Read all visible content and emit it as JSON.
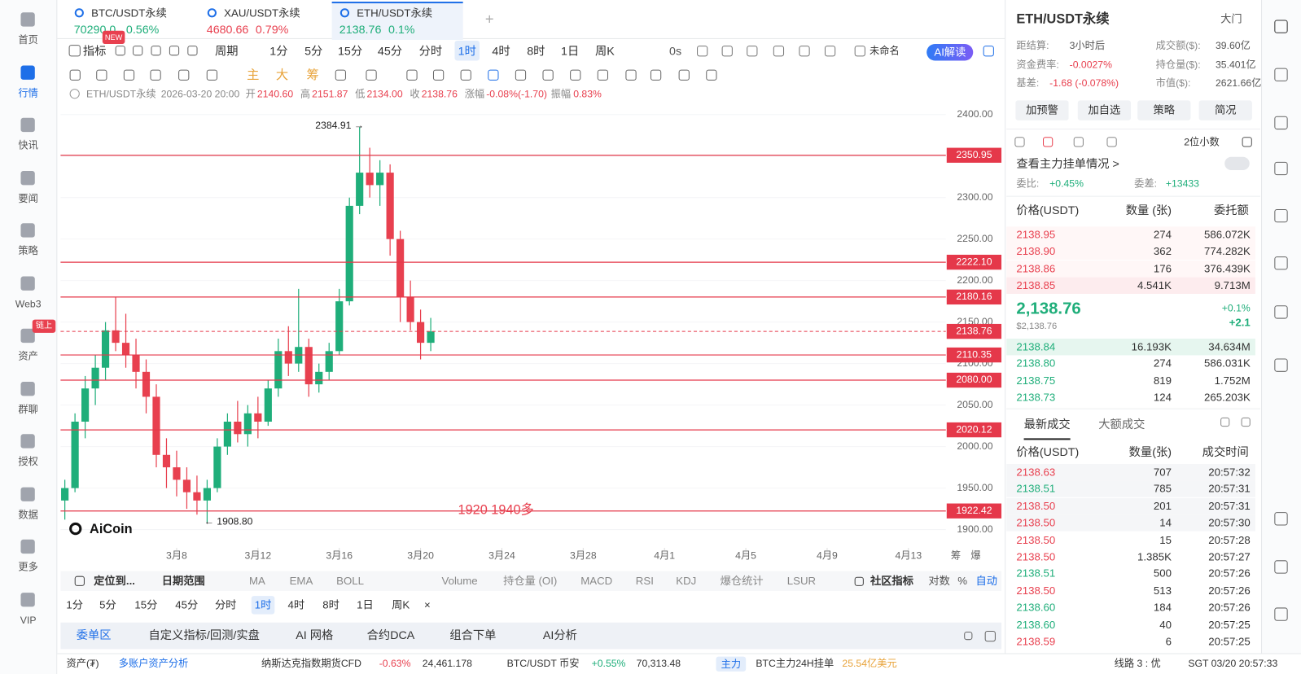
{
  "sidebar": {
    "items": [
      "首页",
      "行情",
      "快讯",
      "要闻",
      "策略",
      "Web3",
      "资产",
      "群聊",
      "授权",
      "数据",
      "更多",
      "VIP"
    ],
    "active_index": 1,
    "badge": "链上"
  },
  "tabs": {
    "items": [
      {
        "name": "BTC/USDT永续",
        "price": "70290.0",
        "change": "0.56%",
        "trend": "up"
      },
      {
        "name": "XAU/USDT永续",
        "price": "4680.66",
        "change": "0.79%",
        "trend": "down"
      },
      {
        "name": "ETH/USDT永续",
        "price": "2138.76",
        "change": "0.1%",
        "trend": "up"
      }
    ],
    "active_index": 2,
    "add": "+"
  },
  "toolbar": {
    "indicator": "指标",
    "new_badge": "NEW",
    "period": "周期",
    "periods": [
      "1分",
      "5分",
      "15分",
      "45分",
      "分时",
      "1时",
      "4时",
      "8时",
      "1日",
      "周K"
    ],
    "active_period_index": 5,
    "countdown": "0s",
    "layout_name": "未命名",
    "ai": "AI解读"
  },
  "draw_toolbar": [
    "主",
    "大",
    "筹"
  ],
  "info_bar": {
    "symbol": "ETH/USDT永续",
    "time": "2026-03-20 20:00",
    "open_label": "开",
    "open": "2140.60",
    "high_label": "高",
    "high": "2151.87",
    "low_label": "低",
    "low": "2134.00",
    "close_label": "收",
    "close": "2138.76",
    "change_label": "涨幅",
    "change": "-0.08%(-1.70)",
    "amplitude_label": "振幅",
    "amplitude": "0.83%"
  },
  "chart_data": {
    "type": "candlestick",
    "logo": "AiCoin",
    "high_marker": "2384.91 →",
    "low_marker": "← 1908.80",
    "note": "1920  1940多",
    "side_labels": [
      "筹",
      "爆"
    ],
    "colors": {
      "up": "#1fae7a",
      "down": "#e8404f",
      "level": "#e5384a"
    },
    "xlim": [
      2.29,
      45.84
    ],
    "ylim": [
      1878,
      2433
    ],
    "xticks": [
      {
        "value": 8,
        "label": "3月8"
      },
      {
        "value": 12,
        "label": "3月12"
      },
      {
        "value": 16,
        "label": "3月16"
      },
      {
        "value": 20,
        "label": "3月20"
      },
      {
        "value": 24,
        "label": "3月24"
      },
      {
        "value": 28,
        "label": "3月28"
      },
      {
        "value": 32,
        "label": "4月1"
      },
      {
        "value": 36,
        "label": "4月5"
      },
      {
        "value": 40,
        "label": "4月9"
      },
      {
        "value": 44,
        "label": "4月13"
      }
    ],
    "yticks": [
      {
        "value": 1900,
        "label": "1900.00"
      },
      {
        "value": 1950,
        "label": "1950.00"
      },
      {
        "value": 2000,
        "label": "2000.00"
      },
      {
        "value": 2050,
        "label": "2050.00"
      },
      {
        "value": 2100,
        "label": "2100.00"
      },
      {
        "value": 2150,
        "label": "2150.00"
      },
      {
        "value": 2200,
        "label": "2200.00"
      },
      {
        "value": 2250,
        "label": "2250.00"
      },
      {
        "value": 2300,
        "label": "2300.00"
      },
      {
        "value": 2350,
        "label": "2350.00"
      },
      {
        "value": 2400,
        "label": "2400.00"
      }
    ],
    "levels": [
      {
        "value": 2350.95,
        "label": "2350.95"
      },
      {
        "value": 2222.1,
        "label": "2222.10"
      },
      {
        "value": 2180.16,
        "label": "2180.16"
      },
      {
        "value": 2110.35,
        "label": "2110.35"
      },
      {
        "value": 2080,
        "label": "2080.00"
      },
      {
        "value": 2020.12,
        "label": "2020.12"
      },
      {
        "value": 1922.42,
        "label": "1922.42"
      }
    ],
    "last_price": {
      "value": 2138.76,
      "label": "2138.76"
    },
    "candles": {
      "x": [
        2.5,
        3.0,
        3.5,
        4.0,
        4.5,
        5.0,
        5.5,
        6.0,
        6.5,
        7.0,
        7.5,
        8.0,
        8.5,
        9.0,
        9.5,
        10.0,
        10.5,
        11.0,
        11.5,
        12.0,
        12.5,
        13.0,
        13.5,
        14.0,
        14.5,
        15.0,
        15.5,
        16.0,
        16.5,
        17.0,
        17.5,
        18.0,
        18.5,
        19.0,
        19.5,
        20.0,
        20.5
      ],
      "open": [
        1935,
        1950,
        2030,
        2070,
        2095,
        2140,
        2125,
        2110,
        2090,
        2060,
        1990,
        1975,
        1960,
        1945,
        1935,
        1950,
        2000,
        2030,
        2015,
        2040,
        2030,
        2070,
        2115,
        2100,
        2120,
        2075,
        2090,
        2115,
        2175,
        2290,
        2330,
        2315,
        2330,
        2250,
        2180,
        2150,
        2125
      ],
      "high": [
        1960,
        2040,
        2085,
        2110,
        2150,
        2180,
        2160,
        2130,
        2105,
        2075,
        2010,
        1995,
        1975,
        1965,
        1960,
        2010,
        2040,
        2055,
        2050,
        2060,
        2080,
        2130,
        2145,
        2190,
        2130,
        2100,
        2125,
        2190,
        2300,
        2384.91,
        2360,
        2345,
        2340,
        2260,
        2200,
        2165,
        2155
      ],
      "low": [
        1912,
        1945,
        2010,
        2050,
        2080,
        2115,
        2095,
        2070,
        2040,
        1975,
        1950,
        1940,
        1925,
        1918,
        1908.8,
        1945,
        1990,
        2005,
        2000,
        2010,
        2025,
        2060,
        2085,
        2090,
        2060,
        2065,
        2080,
        2110,
        2170,
        2280,
        2300,
        2290,
        2230,
        2150,
        2140,
        2105,
        2115
      ],
      "close": [
        1950,
        2030,
        2070,
        2095,
        2140,
        2125,
        2110,
        2090,
        2060,
        1990,
        1975,
        1960,
        1945,
        1935,
        1950,
        2000,
        2030,
        2015,
        2040,
        2030,
        2070,
        2115,
        2100,
        2120,
        2075,
        2090,
        2115,
        2175,
        2290,
        2330,
        2315,
        2330,
        2250,
        2180,
        2150,
        2125,
        2138.76
      ]
    }
  },
  "indicator_bar": {
    "locate": "定位到...",
    "date_range": "日期范围",
    "main_indicators": [
      "MA",
      "EMA",
      "BOLL"
    ],
    "sub_indicators": [
      "Volume",
      "持仓量 (OI)",
      "MACD",
      "RSI",
      "KDJ",
      "爆仓统计",
      "LSUR"
    ],
    "community": "社区指标",
    "log": "对数",
    "percent": "%",
    "auto": "自动"
  },
  "period_bar": {
    "periods": [
      "1分",
      "5分",
      "15分",
      "45分",
      "分时",
      "1时",
      "4时",
      "8时",
      "1日",
      "周K"
    ],
    "active_index": 5,
    "close": "×"
  },
  "bottom_tabs": {
    "items": [
      "委单区",
      "自定义指标/回测/实盘",
      "AI 网格",
      "合约DCA",
      "组合下单",
      "AI分析"
    ],
    "active_index": 0
  },
  "status_bar": {
    "assets": "资产(₮)",
    "multi_account": "多账户资产分析",
    "ticker1_name": "纳斯达克指数期货CFD",
    "ticker1_change": "-0.63%",
    "ticker1_price": "24,461.178",
    "ticker2_name": "BTC/USDT 币安",
    "ticker2_change": "+0.55%",
    "ticker2_price": "70,313.48",
    "main_badge": "主力",
    "main_text": "BTC主力24H挂单",
    "main_value": "25.54亿美元",
    "line": "线路 3 : 优",
    "clock": "SGT 03/20 20:57:33"
  },
  "panel": {
    "title": "ETH/USDT永续",
    "gate": "大门",
    "stats": [
      {
        "label": "距结算:",
        "value": "3小时后"
      },
      {
        "label": "资金费率:",
        "value": "-0.0027%"
      },
      {
        "label": "基差:",
        "value": "-1.68 (-0.078%)"
      },
      {
        "label": "成交额($):",
        "value": "39.60亿"
      },
      {
        "label": "持仓量($):",
        "value": "35.401亿"
      },
      {
        "label": "市值($):",
        "value": "2621.66亿"
      }
    ],
    "buttons": [
      "加预警",
      "加自选",
      "策略",
      "简况"
    ],
    "decimals": "2位小数",
    "main_orders": "查看主力挂单情况 >",
    "ratio_label": "委比:",
    "ratio": "+0.45%",
    "diff_label": "委差:",
    "diff": "+13433",
    "book_headers": [
      "价格(USDT)",
      "数量 (张)",
      "委托额"
    ],
    "asks": [
      [
        "2138.95",
        "274",
        "586.072K"
      ],
      [
        "2138.90",
        "362",
        "774.282K"
      ],
      [
        "2138.86",
        "176",
        "376.439K"
      ],
      [
        "2138.85",
        "4.541K",
        "9.713M"
      ]
    ],
    "last": "2,138.76",
    "last_usd": "$2,138.76",
    "last_change_pct": "+0.1%",
    "last_change": "+2.1",
    "bids": [
      [
        "2138.84",
        "16.193K",
        "34.634M"
      ],
      [
        "2138.80",
        "274",
        "586.031K"
      ],
      [
        "2138.75",
        "819",
        "1.752M"
      ],
      [
        "2138.73",
        "124",
        "265.203K"
      ]
    ],
    "trade_tabs": [
      "最新成交",
      "大额成交"
    ],
    "trade_headers": [
      "价格(USDT)",
      "数量(张)",
      "成交时间"
    ],
    "trades": [
      {
        "price": "2138.63",
        "qty": "707",
        "time": "20:57:32",
        "side": "sell"
      },
      {
        "price": "2138.51",
        "qty": "785",
        "time": "20:57:31",
        "side": "buy"
      },
      {
        "price": "2138.50",
        "qty": "201",
        "time": "20:57:31",
        "side": "sell"
      },
      {
        "price": "2138.50",
        "qty": "14",
        "time": "20:57:30",
        "side": "sell"
      },
      {
        "price": "2138.50",
        "qty": "15",
        "time": "20:57:28",
        "side": "sell"
      },
      {
        "price": "2138.50",
        "qty": "1.385K",
        "time": "20:57:27",
        "side": "sell"
      },
      {
        "price": "2138.51",
        "qty": "500",
        "time": "20:57:26",
        "side": "buy"
      },
      {
        "price": "2138.50",
        "qty": "513",
        "time": "20:57:26",
        "side": "sell"
      },
      {
        "price": "2138.60",
        "qty": "184",
        "time": "20:57:26",
        "side": "buy"
      },
      {
        "price": "2138.60",
        "qty": "40",
        "time": "20:57:25",
        "side": "buy"
      },
      {
        "price": "2138.59",
        "qty": "6",
        "time": "20:57:25",
        "side": "sell"
      }
    ]
  }
}
